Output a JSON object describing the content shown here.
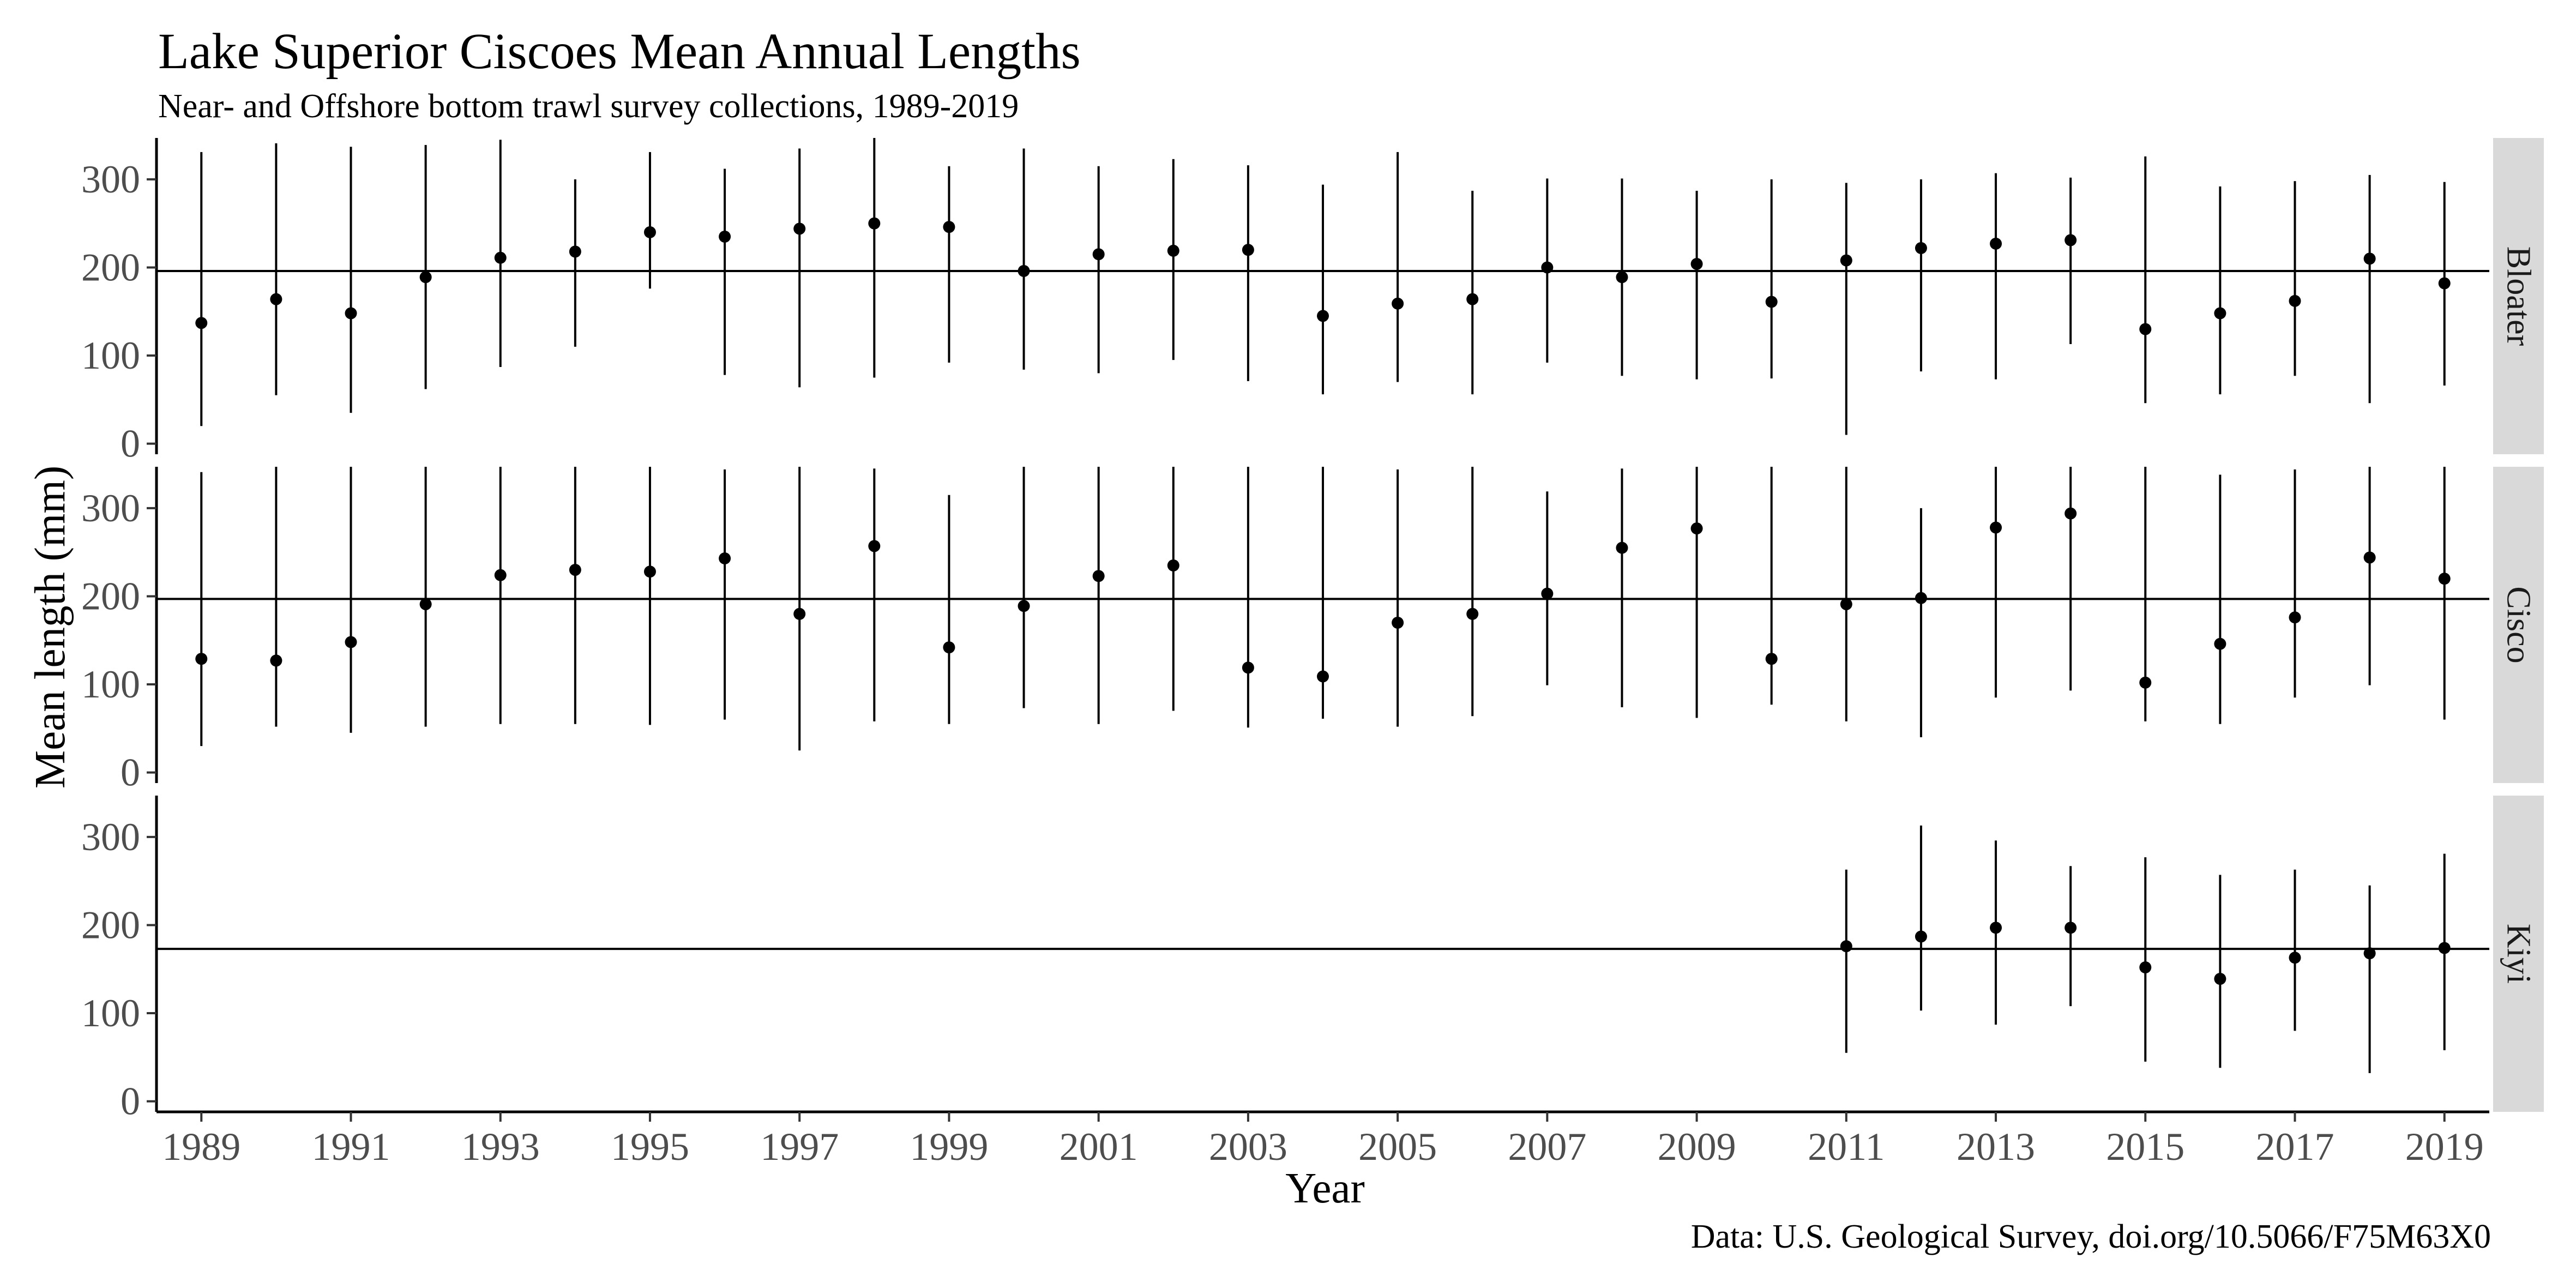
{
  "chart_data": {
    "type": "scatter",
    "title": "Lake Superior Ciscoes Mean Annual Lengths",
    "subtitle": "Near- and Offshore bottom trawl survey collections, 1989-2019",
    "xlabel": "Year",
    "ylabel": "Mean length (mm)",
    "caption": "Data: U.S. Geological Survey, doi.org/10.5066/F75M63X0",
    "x_ticks": [
      "1989",
      "1991",
      "1993",
      "1995",
      "1997",
      "1999",
      "2001",
      "2003",
      "2005",
      "2007",
      "2009",
      "2011",
      "2013",
      "2015",
      "2017",
      "2019"
    ],
    "y_ticks": [
      "0",
      "100",
      "200",
      "300"
    ],
    "xlim": [
      1988.4,
      2019.6
    ],
    "ylim": [
      -12,
      347
    ],
    "error_bars": true,
    "reference_line": "horizontal line per panel",
    "panels": [
      {
        "name": "Bloater",
        "reference_value": 196,
        "points": [
          {
            "year": 1989,
            "mean": 137,
            "low": 20,
            "high": 331
          },
          {
            "year": 1990,
            "mean": 164,
            "low": 55,
            "high": 341
          },
          {
            "year": 1991,
            "mean": 148,
            "low": 35,
            "high": 337
          },
          {
            "year": 1992,
            "mean": 189,
            "low": 62,
            "high": 339
          },
          {
            "year": 1993,
            "mean": 211,
            "low": 87,
            "high": 345
          },
          {
            "year": 1994,
            "mean": 218,
            "low": 110,
            "high": 300
          },
          {
            "year": 1995,
            "mean": 240,
            "low": 176,
            "high": 331
          },
          {
            "year": 1996,
            "mean": 235,
            "low": 78,
            "high": 312
          },
          {
            "year": 1997,
            "mean": 244,
            "low": 64,
            "high": 335
          },
          {
            "year": 1998,
            "mean": 250,
            "low": 75,
            "high": 347
          },
          {
            "year": 1999,
            "mean": 246,
            "low": 92,
            "high": 315
          },
          {
            "year": 2000,
            "mean": 196,
            "low": 84,
            "high": 335
          },
          {
            "year": 2001,
            "mean": 215,
            "low": 80,
            "high": 315
          },
          {
            "year": 2002,
            "mean": 219,
            "low": 95,
            "high": 323
          },
          {
            "year": 2003,
            "mean": 220,
            "low": 71,
            "high": 316
          },
          {
            "year": 2004,
            "mean": 145,
            "low": 56,
            "high": 294
          },
          {
            "year": 2005,
            "mean": 159,
            "low": 70,
            "high": 331
          },
          {
            "year": 2006,
            "mean": 164,
            "low": 56,
            "high": 287
          },
          {
            "year": 2007,
            "mean": 200,
            "low": 92,
            "high": 301
          },
          {
            "year": 2008,
            "mean": 189,
            "low": 77,
            "high": 301
          },
          {
            "year": 2009,
            "mean": 204,
            "low": 73,
            "high": 287
          },
          {
            "year": 2010,
            "mean": 161,
            "low": 74,
            "high": 300
          },
          {
            "year": 2011,
            "mean": 208,
            "low": 10,
            "high": 296
          },
          {
            "year": 2012,
            "mean": 222,
            "low": 82,
            "high": 300
          },
          {
            "year": 2013,
            "mean": 227,
            "low": 73,
            "high": 307
          },
          {
            "year": 2014,
            "mean": 231,
            "low": 113,
            "high": 302
          },
          {
            "year": 2015,
            "mean": 130,
            "low": 46,
            "high": 326
          },
          {
            "year": 2016,
            "mean": 148,
            "low": 56,
            "high": 292
          },
          {
            "year": 2017,
            "mean": 162,
            "low": 77,
            "high": 298
          },
          {
            "year": 2018,
            "mean": 210,
            "low": 46,
            "high": 305
          },
          {
            "year": 2019,
            "mean": 182,
            "low": 66,
            "high": 297
          }
        ]
      },
      {
        "name": "Cisco",
        "reference_value": 197,
        "points": [
          {
            "year": 1989,
            "mean": 129,
            "low": 30,
            "high": 341
          },
          {
            "year": 1990,
            "mean": 127,
            "low": 52,
            "high": 347
          },
          {
            "year": 1991,
            "mean": 148,
            "low": 45,
            "high": 347
          },
          {
            "year": 1992,
            "mean": 191,
            "low": 52,
            "high": 347
          },
          {
            "year": 1993,
            "mean": 224,
            "low": 55,
            "high": 347
          },
          {
            "year": 1994,
            "mean": 230,
            "low": 55,
            "high": 347
          },
          {
            "year": 1995,
            "mean": 228,
            "low": 54,
            "high": 347
          },
          {
            "year": 1996,
            "mean": 243,
            "low": 60,
            "high": 344
          },
          {
            "year": 1997,
            "mean": 180,
            "low": 25,
            "high": 347
          },
          {
            "year": 1998,
            "mean": 257,
            "low": 58,
            "high": 345
          },
          {
            "year": 1999,
            "mean": 142,
            "low": 55,
            "high": 315
          },
          {
            "year": 2000,
            "mean": 189,
            "low": 73,
            "high": 347
          },
          {
            "year": 2001,
            "mean": 223,
            "low": 55,
            "high": 347
          },
          {
            "year": 2002,
            "mean": 235,
            "low": 70,
            "high": 347
          },
          {
            "year": 2003,
            "mean": 119,
            "low": 51,
            "high": 347
          },
          {
            "year": 2004,
            "mean": 109,
            "low": 61,
            "high": 347
          },
          {
            "year": 2005,
            "mean": 170,
            "low": 52,
            "high": 344
          },
          {
            "year": 2006,
            "mean": 180,
            "low": 64,
            "high": 347
          },
          {
            "year": 2007,
            "mean": 203,
            "low": 99,
            "high": 319
          },
          {
            "year": 2008,
            "mean": 255,
            "low": 74,
            "high": 345
          },
          {
            "year": 2009,
            "mean": 277,
            "low": 62,
            "high": 347
          },
          {
            "year": 2010,
            "mean": 129,
            "low": 77,
            "high": 347
          },
          {
            "year": 2011,
            "mean": 191,
            "low": 58,
            "high": 347
          },
          {
            "year": 2012,
            "mean": 198,
            "low": 40,
            "high": 300
          },
          {
            "year": 2013,
            "mean": 278,
            "low": 85,
            "high": 347
          },
          {
            "year": 2014,
            "mean": 294,
            "low": 93,
            "high": 347
          },
          {
            "year": 2015,
            "mean": 102,
            "low": 58,
            "high": 347
          },
          {
            "year": 2016,
            "mean": 146,
            "low": 55,
            "high": 338
          },
          {
            "year": 2017,
            "mean": 176,
            "low": 85,
            "high": 344
          },
          {
            "year": 2018,
            "mean": 244,
            "low": 99,
            "high": 347
          },
          {
            "year": 2019,
            "mean": 220,
            "low": 60,
            "high": 347
          }
        ]
      },
      {
        "name": "Kiyi",
        "reference_value": 173,
        "points": [
          {
            "year": 2011,
            "mean": 176,
            "low": 55,
            "high": 263
          },
          {
            "year": 2012,
            "mean": 187,
            "low": 103,
            "high": 313
          },
          {
            "year": 2013,
            "mean": 197,
            "low": 87,
            "high": 296
          },
          {
            "year": 2014,
            "mean": 197,
            "low": 108,
            "high": 267
          },
          {
            "year": 2015,
            "mean": 152,
            "low": 45,
            "high": 277
          },
          {
            "year": 2016,
            "mean": 139,
            "low": 38,
            "high": 257
          },
          {
            "year": 2017,
            "mean": 163,
            "low": 80,
            "high": 263
          },
          {
            "year": 2018,
            "mean": 168,
            "low": 32,
            "high": 245
          },
          {
            "year": 2019,
            "mean": 174,
            "low": 58,
            "high": 281
          }
        ]
      }
    ]
  }
}
